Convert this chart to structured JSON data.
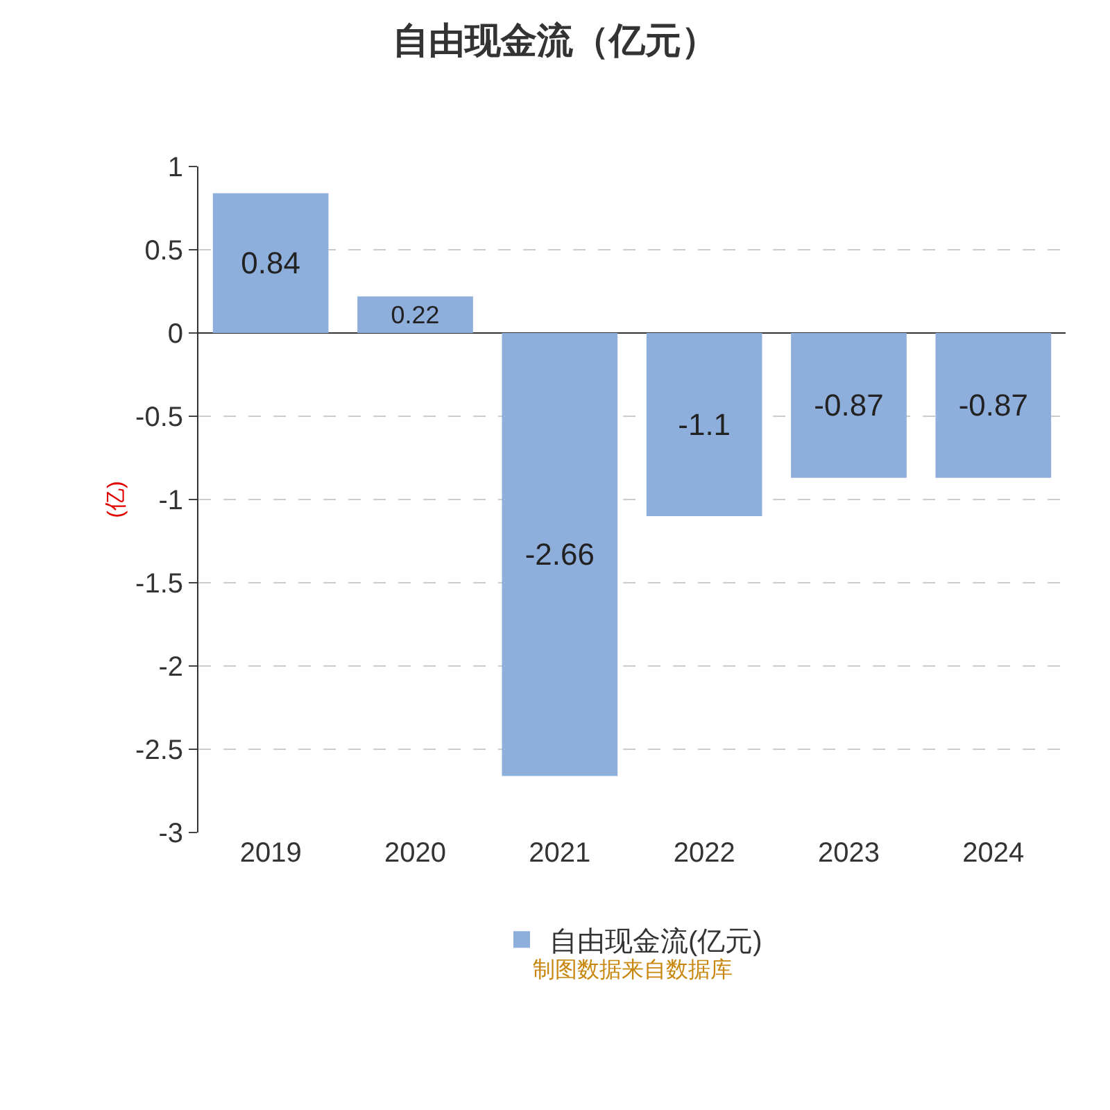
{
  "chart_data": {
    "type": "bar",
    "title": "自由现金流（亿元）",
    "ylabel": "(亿)",
    "categories": [
      "2019",
      "2020",
      "2021",
      "2022",
      "2023",
      "2024"
    ],
    "series": [
      {
        "name": "自由现金流(亿元)",
        "color": "#8eaedb",
        "values": [
          0.84,
          0.22,
          -2.66,
          -1.1,
          -0.87,
          -0.87
        ]
      }
    ],
    "ylim": [
      -3,
      1
    ],
    "yticks": [
      -3,
      -2.5,
      -2,
      -1.5,
      -1,
      -0.5,
      0,
      0.5,
      1
    ],
    "data_labels": true,
    "grid": "y",
    "legend": "bottom",
    "annotations": [
      "制图数据来自数据库"
    ]
  }
}
